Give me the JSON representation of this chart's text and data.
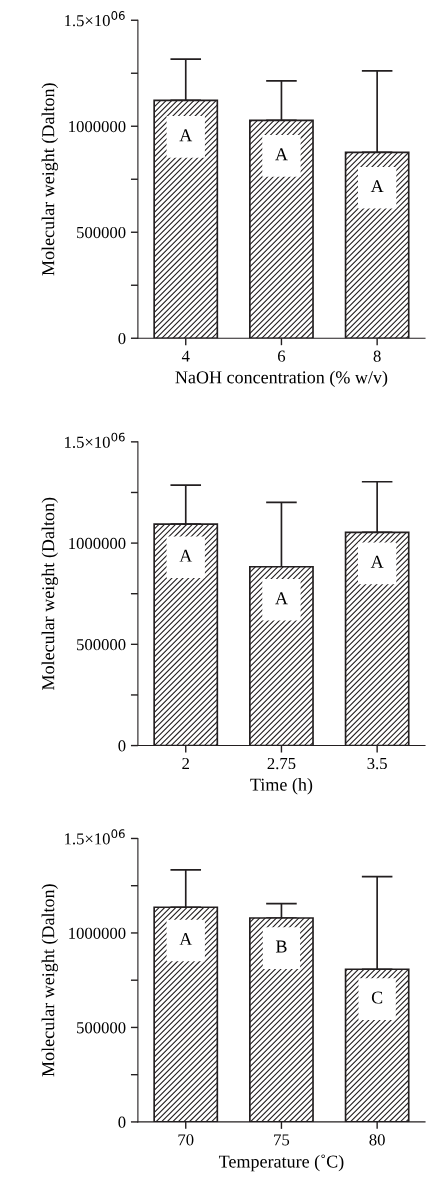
{
  "chart_data": [
    {
      "type": "bar",
      "xlabel": "NaOH concentration (% w/v)",
      "ylabel": "Molecular weight (Dalton)",
      "categories": [
        "4",
        "6",
        "8"
      ],
      "values": [
        1122000,
        1028000,
        877000
      ],
      "errors": [
        [
          1122000,
          1317000
        ],
        [
          1028000,
          1214000
        ],
        [
          877000,
          1261000
        ]
      ],
      "color": "#231f20",
      "ylim": [
        0,
        1500000
      ],
      "yticks": [
        0,
        {
          "value": 250000,
          "label": null
        },
        500000,
        {
          "value": 750000,
          "label": null
        },
        1000000,
        {
          "value": 1250000,
          "label": null
        },
        {
          "value": 1500000,
          "label": "1.5×10$^{06}$"
        }
      ],
      "grid": false,
      "legend": false,
      "annotations": [
        {
          "text": "A",
          "x": "4",
          "y": 950000
        },
        {
          "text": "A",
          "x": "6",
          "y": 860000
        },
        {
          "text": "A",
          "x": "8",
          "y": 710000
        }
      ]
    },
    {
      "type": "bar",
      "xlabel": "Time (h)",
      "ylabel": "Molecular weight (Dalton)",
      "categories": [
        "2",
        "2.75",
        "3.5"
      ],
      "values": [
        1094000,
        883000,
        1053000
      ],
      "errors": [
        [
          1094000,
          1286000
        ],
        [
          883000,
          1201000
        ],
        [
          1053000,
          1303000
        ]
      ],
      "color": "#231f20",
      "ylim": [
        0,
        1500000
      ],
      "yticks": [
        0,
        {
          "value": 250000,
          "label": null
        },
        500000,
        {
          "value": 750000,
          "label": null
        },
        1000000,
        {
          "value": 1250000,
          "label": null
        },
        {
          "value": 1500000,
          "label": "1.5×10$^{06}$"
        }
      ],
      "grid": false,
      "legend": false,
      "annotations": [
        {
          "text": "A",
          "x": "2",
          "y": 930000
        },
        {
          "text": "A",
          "x": "2.75",
          "y": 720000
        },
        {
          "text": "A",
          "x": "3.5",
          "y": 900000
        }
      ]
    },
    {
      "type": "bar",
      "xlabel": "Temperature (˚C)",
      "ylabel": "Molecular weight (Dalton)",
      "categories": [
        "70",
        "75",
        "80"
      ],
      "values": [
        1136000,
        1079000,
        808000
      ],
      "errors": [
        [
          1136000,
          1334000
        ],
        [
          1079000,
          1155000
        ],
        [
          808000,
          1298000
        ]
      ],
      "color": "#231f20",
      "ylim": [
        0,
        1500000
      ],
      "yticks": [
        0,
        {
          "value": 250000,
          "label": null
        },
        500000,
        {
          "value": 750000,
          "label": null
        },
        1000000,
        {
          "value": 1250000,
          "label": null
        },
        {
          "value": 1500000,
          "label": "1.5×10$^{06}$"
        }
      ],
      "grid": false,
      "legend": false,
      "annotations": [
        {
          "text": "A",
          "x": "70",
          "y": 960000
        },
        {
          "text": "B",
          "x": "75",
          "y": 920000
        },
        {
          "text": "C",
          "x": "80",
          "y": 650000
        }
      ]
    }
  ]
}
